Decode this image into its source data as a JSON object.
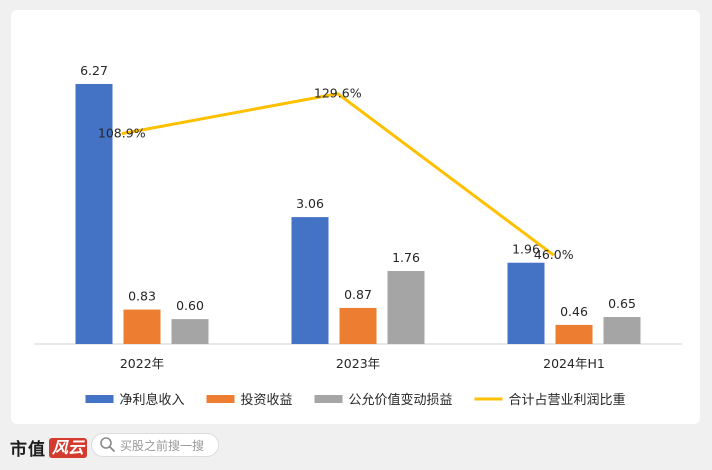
{
  "chart_data": {
    "type": "bar",
    "categories": [
      "2022年",
      "2023年",
      "2024年H1"
    ],
    "series": [
      {
        "name": "净利息收入",
        "values": [
          6.27,
          3.06,
          1.96
        ],
        "labels": [
          "6.27",
          "3.06",
          "1.96"
        ],
        "color": "#4472c4",
        "kind": "bar"
      },
      {
        "name": "投资收益",
        "values": [
          0.83,
          0.87,
          0.46
        ],
        "labels": [
          "0.83",
          "0.87",
          "0.46"
        ],
        "color": "#ed7d31",
        "kind": "bar"
      },
      {
        "name": "公允价值变动损益",
        "values": [
          0.6,
          1.76,
          0.65
        ],
        "labels": [
          "0.60",
          "1.76",
          "0.65"
        ],
        "color": "#a5a5a5",
        "kind": "bar"
      },
      {
        "name": "合计占营业利润比重",
        "values": [
          108.9,
          129.6,
          46.0
        ],
        "labels": [
          "108.9%",
          "129.6%",
          "46.0%"
        ],
        "color": "#ffc000",
        "kind": "line",
        "axis": "secondary"
      }
    ],
    "ylim": [
      0,
      6.8
    ],
    "y2lim": [
      0,
      146
    ],
    "grid": false,
    "legend_position": "bottom"
  },
  "footer": {
    "brand": "市值",
    "brand_mark": "风云",
    "search_placeholder": "买股之前搜一搜"
  }
}
